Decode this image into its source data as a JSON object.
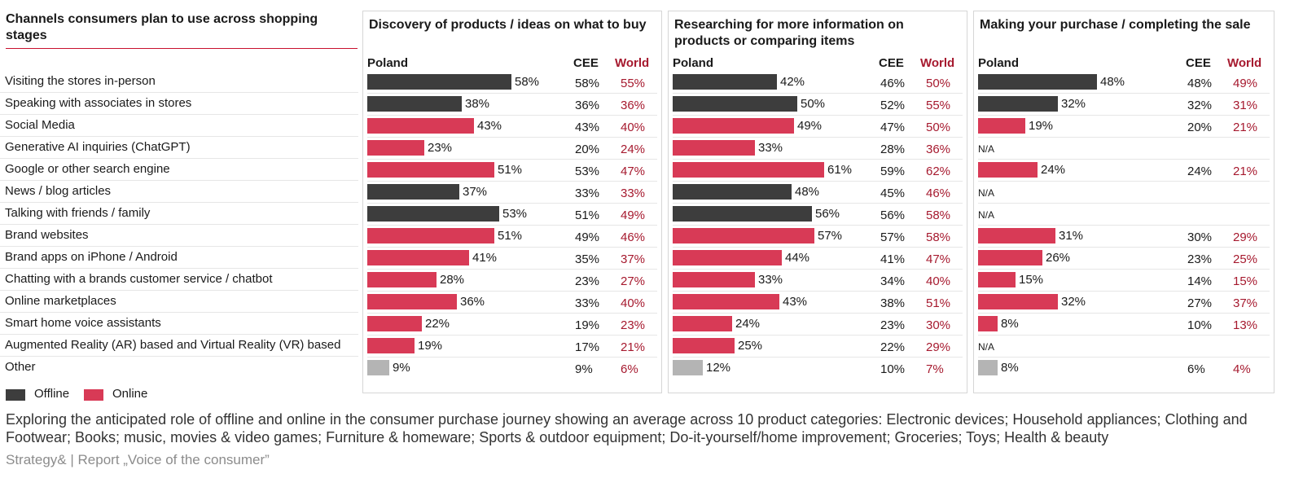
{
  "title": "Channels consumers plan to use across shopping stages",
  "colors": {
    "offline": "#3d3d3d",
    "online": "#d83a56",
    "other": "#b4b4b4",
    "world": "#a6192e"
  },
  "column_headers": {
    "poland": "Poland",
    "cee": "CEE",
    "world": "World"
  },
  "legend": [
    {
      "label": "Offline",
      "type": "offline"
    },
    {
      "label": "Online",
      "type": "online"
    }
  ],
  "footnote": "Exploring the anticipated role of offline and online in the consumer purchase journey showing an average across 10 product categories: Electronic devices; Household appliances; Clothing and Footwear; Books; music, movies & video games; Furniture & homeware; Sports & outdoor equipment; Do-it-yourself/home improvement; Groceries; Toys; Health & beauty",
  "source": "Strategy&  |  Report „Voice of the consumer”",
  "chart_data": {
    "type": "bar",
    "orientation": "horizontal",
    "title": "Channels consumers plan to use across shopping stages",
    "categories": [
      "Visiting the stores in-person",
      "Speaking with associates in stores",
      "Social Media",
      "Generative AI inquiries (ChatGPT)",
      "Google or other search engine",
      "News / blog articles",
      "Talking with friends / family",
      "Brand websites",
      "Brand apps on iPhone / Android",
      "Chatting with a brands customer service / chatbot",
      "Online marketplaces",
      "Smart home voice assistants",
      "Augmented Reality (AR) based and Virtual Reality (VR) based",
      "Other"
    ],
    "category_types": [
      "offline",
      "offline",
      "online",
      "online",
      "online",
      "offline",
      "offline",
      "online",
      "online",
      "online",
      "online",
      "online",
      "online",
      "other"
    ],
    "panels": [
      {
        "title": "Discovery of products / ideas on what to buy",
        "poland": [
          58,
          38,
          43,
          23,
          51,
          37,
          53,
          51,
          41,
          28,
          36,
          22,
          19,
          9
        ],
        "cee": [
          58,
          36,
          43,
          20,
          53,
          33,
          51,
          49,
          35,
          23,
          33,
          19,
          17,
          9
        ],
        "world": [
          55,
          36,
          40,
          24,
          47,
          33,
          49,
          46,
          37,
          27,
          40,
          23,
          21,
          6
        ]
      },
      {
        "title": "Researching for more information on products or comparing items",
        "poland": [
          42,
          50,
          49,
          33,
          61,
          48,
          56,
          57,
          44,
          33,
          43,
          24,
          25,
          12
        ],
        "cee": [
          46,
          52,
          47,
          28,
          59,
          45,
          56,
          57,
          41,
          34,
          38,
          23,
          22,
          10
        ],
        "world": [
          50,
          55,
          50,
          36,
          62,
          46,
          58,
          58,
          47,
          40,
          51,
          30,
          29,
          7
        ]
      },
      {
        "title": "Making your purchase / completing the sale",
        "poland": [
          48,
          32,
          19,
          null,
          24,
          null,
          null,
          31,
          26,
          15,
          32,
          8,
          null,
          8
        ],
        "cee": [
          48,
          32,
          20,
          null,
          24,
          null,
          null,
          30,
          23,
          14,
          27,
          10,
          null,
          6
        ],
        "world": [
          49,
          31,
          21,
          null,
          21,
          null,
          null,
          29,
          25,
          15,
          37,
          13,
          null,
          4
        ]
      }
    ],
    "unit": "%",
    "na_label": "N/A",
    "legend_placement": "bottom-left"
  }
}
